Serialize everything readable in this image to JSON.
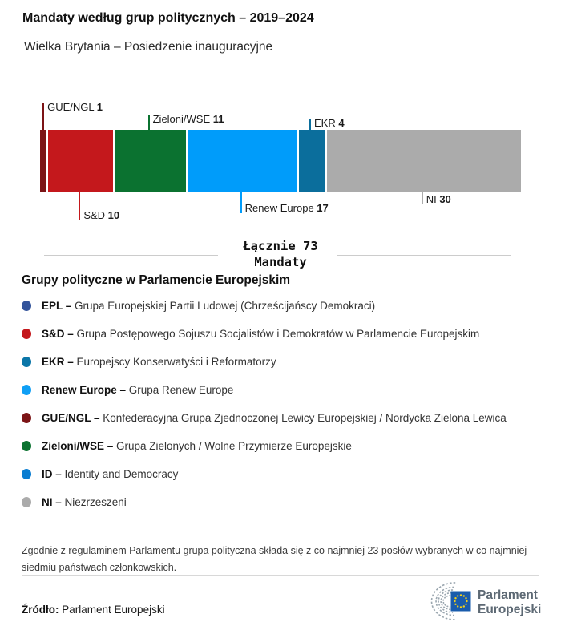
{
  "header": {
    "title": "Mandaty według grup politycznych – 2019–2024",
    "subtitle": "Wielka Brytania – Posiedzenie inauguracyjne"
  },
  "chart_data": {
    "type": "bar",
    "stacked": true,
    "orientation": "horizontal",
    "total": 73,
    "total_label": "Łącznie 73",
    "total_sublabel": "Mandaty",
    "legend_position": "below",
    "segments": [
      {
        "group": "GUE/NGL",
        "seats": 1,
        "color": "#7C1416",
        "callout": "above",
        "tick": 34
      },
      {
        "group": "S&D",
        "seats": 10,
        "color": "#C4181C",
        "callout": "below",
        "tick": 35
      },
      {
        "group": "Zieloni/WSE",
        "seats": 11,
        "color": "#0B7230",
        "callout": "above",
        "tick": 19
      },
      {
        "group": "Renew Europe",
        "seats": 17,
        "color": "#009CFA",
        "callout": "below",
        "tick": 26
      },
      {
        "group": "EKR",
        "seats": 4,
        "color": "#0B6E9C",
        "callout": "above",
        "tick": 14
      },
      {
        "group": "NI",
        "seats": 30,
        "color": "#ABABAB",
        "callout": "below",
        "tick": 15
      }
    ]
  },
  "legend": {
    "heading": "Grupy polityczne w Parlamencie Europejskim",
    "items": [
      {
        "abbr": "EPL –",
        "name": "Grupa Europejskiej Partii Ludowej (Chrześcijańscy Demokraci)",
        "color": "#33549B"
      },
      {
        "abbr": "S&D –",
        "name": "Grupa Postępowego Sojuszu Socjalistów i Demokratów w Parlamencie Europejskim",
        "color": "#C4181C"
      },
      {
        "abbr": "EKR –",
        "name": "Europejscy Konserwatyści i Reformatorzy",
        "color": "#0B76A8"
      },
      {
        "abbr": "Renew Europe –",
        "name": "Grupa Renew Europe",
        "color": "#0F9FF5"
      },
      {
        "abbr": "GUE/NGL –",
        "name": "Konfederacyjna Grupa Zjednoczonej Lewicy Europejskiej / Nordycka Zielona Lewica",
        "color": "#7C1416"
      },
      {
        "abbr": "Zieloni/WSE –",
        "name": "Grupa Zielonych / Wolne Przymierze Europejskie",
        "color": "#0B7230"
      },
      {
        "abbr": "ID –",
        "name": "Identity and Democracy",
        "color": "#0A7DD1"
      },
      {
        "abbr": "NI –",
        "name": "Niezrzeszeni",
        "color": "#ABABAB"
      }
    ]
  },
  "footnote": "Zgodnie z regulaminem Parlamentu grupa polityczna składa się z co najmniej 23 posłów wybranych w co najmniej siedmiu państwach członkowskich.",
  "source": {
    "label": "Źródło:",
    "text": "Parlament Europejski"
  },
  "logo": {
    "line1": "Parlament",
    "line2": "Europejski"
  }
}
